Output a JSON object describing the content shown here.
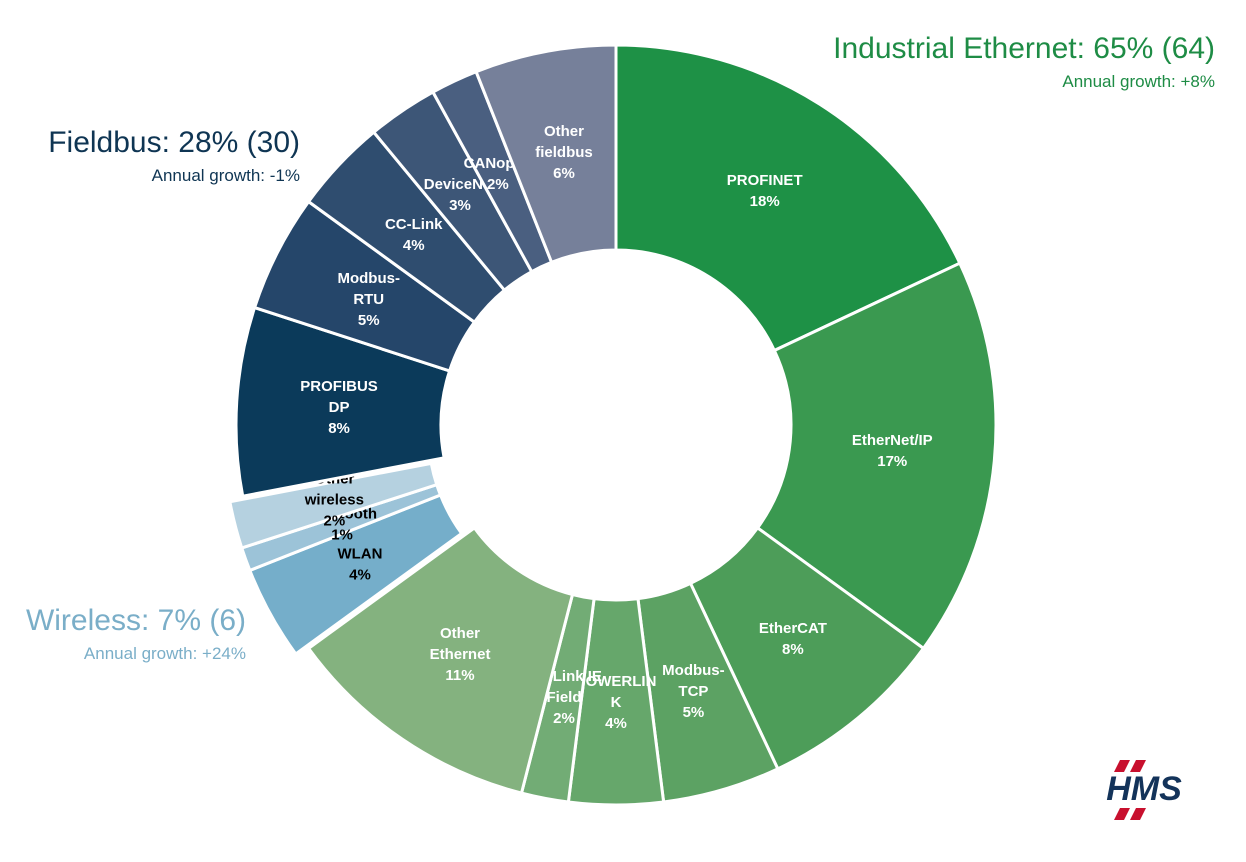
{
  "chart_data": {
    "type": "donut",
    "logo": "HMS",
    "groups": [
      {
        "title": "Industrial Ethernet: 65% (64)",
        "subtitle": "Annual growth: +8%",
        "color": "#1e8c45",
        "label_color": "#ffffff",
        "explode": false,
        "categories": [
          "PROFINET",
          "EtherNet/IP",
          "EtherCAT",
          "Modbus-TCP",
          "POWERLINK",
          "CC-Link IE Field",
          "Other Ethernet"
        ],
        "values": [
          18,
          17,
          8,
          5,
          4,
          2,
          11
        ],
        "value_labels": [
          "18%",
          "17%",
          "8%",
          "5%",
          "4%",
          "2%",
          "11%"
        ],
        "colors": [
          "#1e9146",
          "#3a9950",
          "#4d9d59",
          "#5ca263",
          "#66a76b",
          "#72ac75",
          "#84b27f"
        ]
      },
      {
        "title": "Wireless: 7% (6)",
        "subtitle": "Annual growth: +24%",
        "color": "#7aaec8",
        "label_color": "#000000",
        "explode": true,
        "categories": [
          "WLAN",
          "Bluetooth",
          "Other wireless"
        ],
        "values": [
          4,
          1,
          2
        ],
        "value_labels": [
          "4%",
          "1%",
          "2%"
        ],
        "colors": [
          "#75aeca",
          "#9cc3d8",
          "#b5d1e0"
        ]
      },
      {
        "title": "Fieldbus: 28% (30)",
        "subtitle": "Annual growth: -1%",
        "color": "#0f3553",
        "label_color": "#ffffff",
        "explode": false,
        "categories": [
          "PROFIBUS DP",
          "Modbus-RTU",
          "CC-Link",
          "DeviceNet",
          "CANopen",
          "Other fieldbus"
        ],
        "values": [
          8,
          5,
          4,
          3,
          2,
          6
        ],
        "value_labels": [
          "8%",
          "5%",
          "4%",
          "3%",
          "2%",
          "6%"
        ],
        "colors": [
          "#0b3a5a",
          "#25466a",
          "#2f4d6f",
          "#3d5677",
          "#4a5f80",
          "#76809a"
        ]
      }
    ]
  }
}
